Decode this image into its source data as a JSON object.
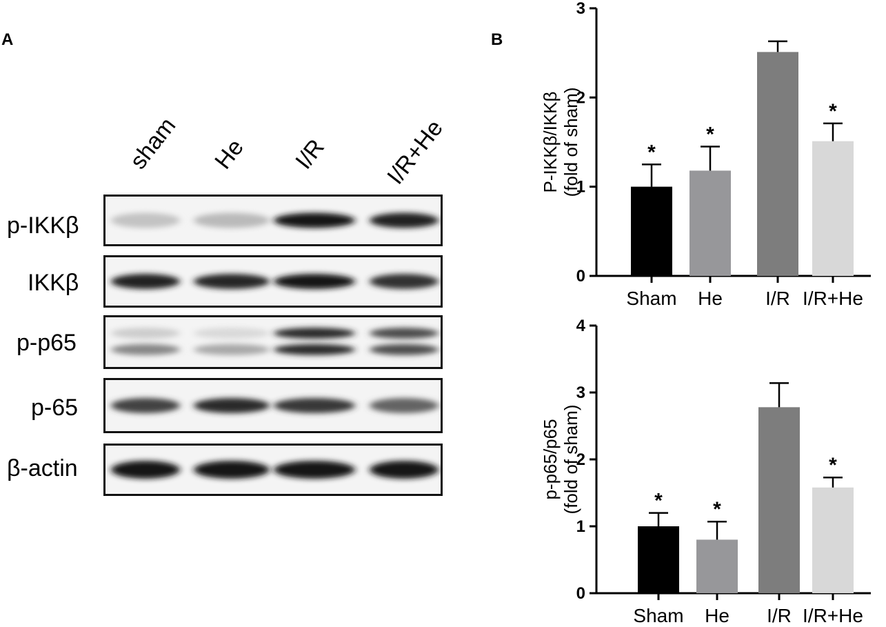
{
  "panels": {
    "a": "A",
    "b": "B"
  },
  "blot": {
    "lanes": [
      "sham",
      "He",
      "I/R",
      "I/R+He"
    ],
    "rows": [
      {
        "label": "p-IKKβ",
        "intensity": [
          0.18,
          0.22,
          0.95,
          0.9
        ]
      },
      {
        "label": "IKKβ",
        "intensity": [
          0.9,
          0.88,
          0.95,
          0.82
        ]
      },
      {
        "label": "p-p65",
        "intensity": [
          0.45,
          0.3,
          0.85,
          0.7
        ]
      },
      {
        "label": "p-65",
        "intensity": [
          0.75,
          0.85,
          0.8,
          0.6
        ]
      },
      {
        "label": "β-actin",
        "intensity": [
          0.95,
          0.95,
          0.95,
          0.95
        ]
      }
    ]
  },
  "chart_data": [
    {
      "type": "bar",
      "categories": [
        "Sham",
        "He",
        "I/R",
        "I/R+He"
      ],
      "values": [
        1.0,
        1.18,
        2.51,
        1.51
      ],
      "errors": [
        0.25,
        0.27,
        0.12,
        0.2
      ],
      "significance": [
        "*",
        "*",
        "",
        "*"
      ],
      "colors": [
        "#000000",
        "#97979a",
        "#7d7d7d",
        "#d8d8d8"
      ],
      "ylabel_line1": "P-IKKβ/IKKβ",
      "ylabel_line2": "(fold of sham)",
      "ylim": [
        0,
        3
      ],
      "yticks": [
        0,
        1,
        2,
        3
      ]
    },
    {
      "type": "bar",
      "categories": [
        "Sham",
        "He",
        "I/R",
        "I/R+He"
      ],
      "values": [
        1.0,
        0.8,
        2.78,
        1.58
      ],
      "errors": [
        0.2,
        0.27,
        0.36,
        0.15
      ],
      "significance": [
        "*",
        "*",
        "",
        "*"
      ],
      "colors": [
        "#000000",
        "#97979a",
        "#7d7d7d",
        "#d8d8d8"
      ],
      "ylabel_line1": "p-p65/p65",
      "ylabel_line2": "(fold of sham)",
      "ylim": [
        0,
        4
      ],
      "yticks": [
        0,
        1,
        2,
        3,
        4
      ]
    }
  ]
}
